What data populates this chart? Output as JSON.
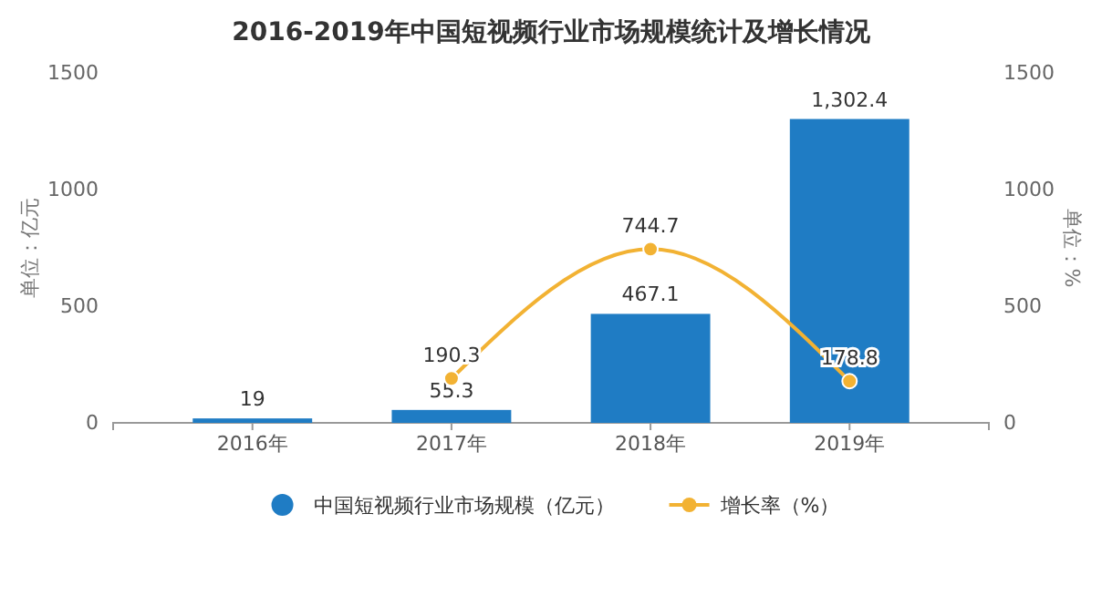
{
  "chart_data": {
    "type": "bar",
    "title": "2016-2019年中国短视频行业市场规模统计及增长情况",
    "categories": [
      "2016年",
      "2017年",
      "2018年",
      "2019年"
    ],
    "series": [
      {
        "name": "中国短视频行业市场规模（亿元）",
        "color": "#1f7cc4",
        "values": [
          19,
          55.3,
          467.1,
          1302.4
        ],
        "value_labels": [
          "19",
          "55.3",
          "467.1",
          "1,302.4"
        ]
      },
      {
        "name": "增长率（%）",
        "type": "line",
        "axis": "y2",
        "color": "#f2b233",
        "values": [
          null,
          190.3,
          744.7,
          178.8
        ],
        "value_labels": [
          null,
          "190.3",
          "744.7",
          "178.8"
        ],
        "marker": "circle"
      }
    ],
    "ylabel": "单位：亿元",
    "y2label": "单位：%",
    "ylim": [
      0,
      1500
    ],
    "yticks": [
      0,
      500,
      1000,
      1500
    ],
    "y2lim": [
      0,
      1500
    ],
    "y2ticks": [
      0,
      500,
      1000,
      1500
    ],
    "legend": "bottom",
    "grid": false
  }
}
